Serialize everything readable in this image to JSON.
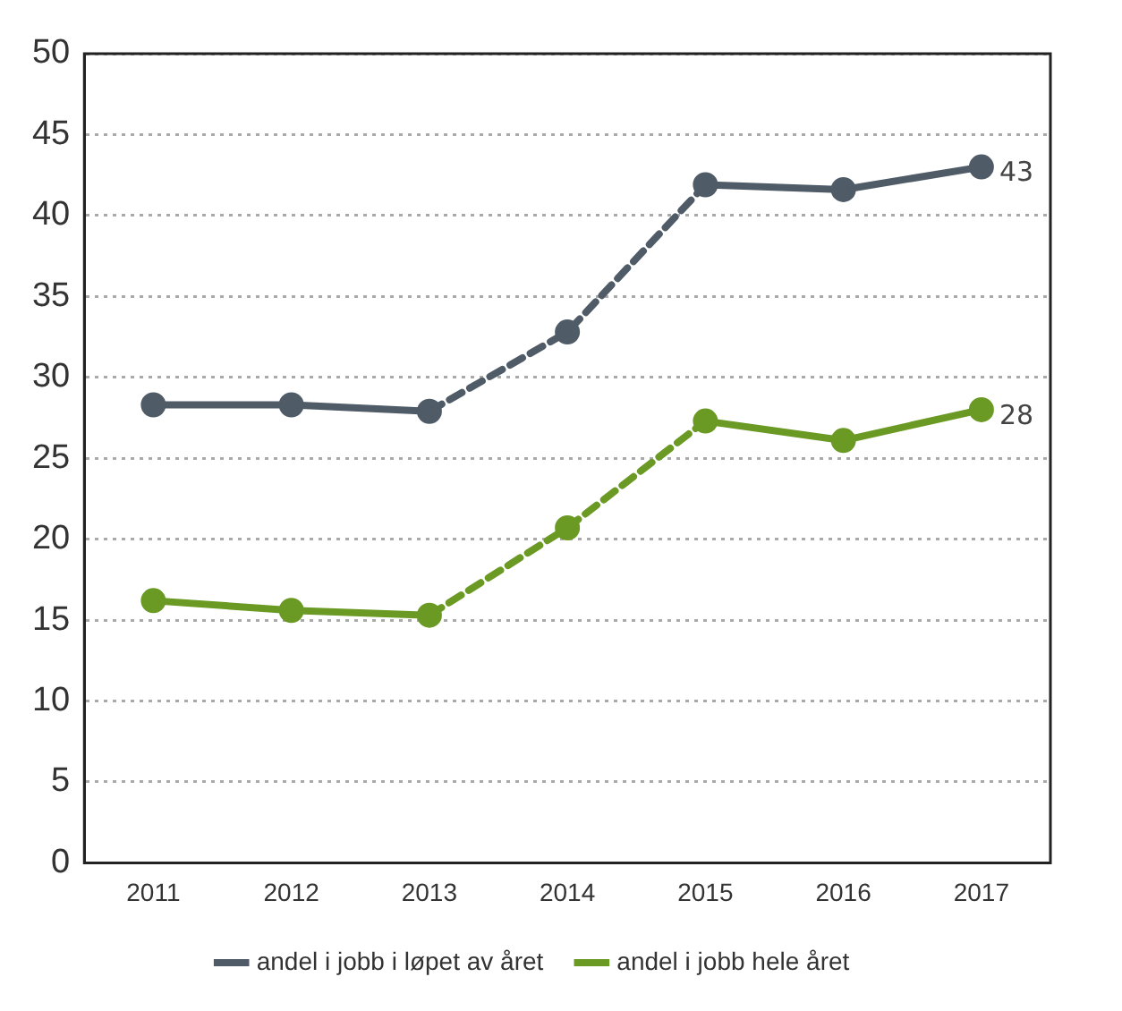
{
  "chart_data": {
    "type": "line",
    "categories": [
      "2011",
      "2012",
      "2013",
      "2014",
      "2015",
      "2016",
      "2017"
    ],
    "series": [
      {
        "name": "andel i jobb i løpet av året",
        "color": "#4f5b66",
        "values": [
          28.3,
          28.3,
          27.9,
          32.8,
          41.9,
          41.6,
          43
        ],
        "value_labels": [
          null,
          null,
          null,
          null,
          null,
          null,
          "43"
        ],
        "line_style": [
          "solid",
          "solid",
          "dashed",
          "dashed",
          "solid",
          "solid"
        ]
      },
      {
        "name": "andel i jobb hele året",
        "color": "#6a9a23",
        "values": [
          16.2,
          15.6,
          15.3,
          20.7,
          27.3,
          26.1,
          28
        ],
        "value_labels": [
          null,
          null,
          null,
          null,
          null,
          null,
          "28"
        ],
        "line_style": [
          "solid",
          "solid",
          "dashed",
          "dashed",
          "solid",
          "solid"
        ]
      }
    ],
    "ylim": [
      0,
      50
    ],
    "yticks": [
      0,
      5,
      10,
      15,
      20,
      25,
      30,
      35,
      40,
      45,
      50
    ],
    "grid": "y",
    "legend": "bottom",
    "marker": "circle"
  }
}
